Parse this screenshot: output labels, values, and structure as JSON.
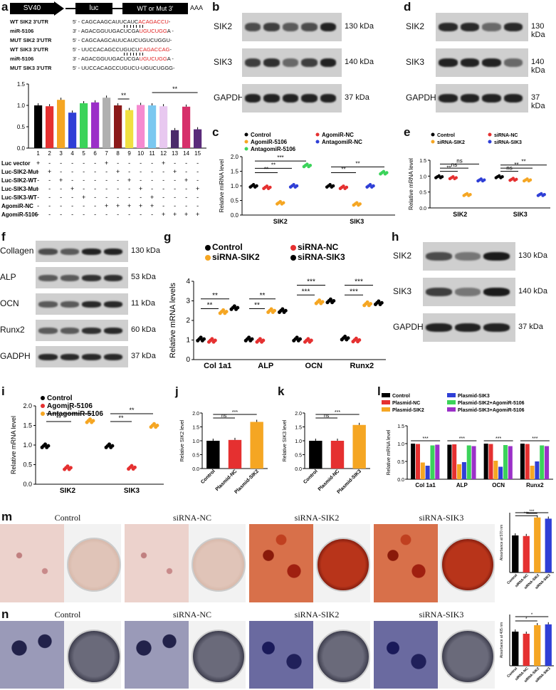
{
  "panels": {
    "a": {
      "letter": "a",
      "construct": {
        "left": "SV40",
        "middle": "luc",
        "right": "WT or Mut 3'",
        "tail": "AAA"
      },
      "sequences": [
        {
          "label": "WT SIK2 3'UTR",
          "prime": "5' -",
          "plain": "CAGCAAGCAUUCAUC",
          "red": "ACAGACCU",
          "end": "-"
        },
        {
          "label": "miR-5106",
          "prime": "3' -",
          "plain": "AGACGGUUGACUCGA",
          "red": "UGUCUGG",
          "end": "A -"
        },
        {
          "label": "MUT SIK2 3'UTR",
          "prime": "5' -",
          "plain": "CAGCAAGCAUUCAUCUGUCUGGU",
          "red": "",
          "end": "-"
        },
        {
          "label": "WT SIK3 3'UTR",
          "prime": "5' -",
          "plain": "UUCCACAGCCUGUCU",
          "red": "CAGACCAG",
          "end": "-"
        },
        {
          "label": "miR-5106",
          "prime": "3' -",
          "plain": "AGACGGUUGACUCGA",
          "red": "UGUCUGG",
          "end": "A -"
        },
        {
          "label": "MUT SIK3 3'UTR",
          "prime": "5' -",
          "plain": "UUCCACAGCCUGUCU-UGUCUGGG",
          "red": "",
          "end": "-"
        }
      ],
      "chart_data": {
        "type": "bar",
        "categories": [
          "1",
          "2",
          "3",
          "4",
          "5",
          "6",
          "7",
          "8",
          "9",
          "10",
          "11",
          "12",
          "13",
          "14",
          "15"
        ],
        "values": [
          1.0,
          0.98,
          1.13,
          0.83,
          1.05,
          1.07,
          1.18,
          1.0,
          0.89,
          1.01,
          1.0,
          0.98,
          0.42,
          0.97,
          0.44
        ],
        "colors": [
          "#000000",
          "#e53030",
          "#f5a623",
          "#2f3fd6",
          "#3bd35a",
          "#9b30c8",
          "#b0b0b0",
          "#8b1a1a",
          "#f0e040",
          "#f58ad0",
          "#7ac8f0",
          "#e8c8f0",
          "#4a2a6a",
          "#d6306a",
          "#5a2a7a"
        ],
        "ylim": [
          0,
          1.5
        ],
        "yticks": [
          "0.0",
          "0.5",
          "1.0",
          "1.5"
        ],
        "significance": [
          "**",
          "**"
        ]
      },
      "design_table": {
        "rows": [
          {
            "label": "Luc vector",
            "marks": [
              "+",
              "-",
              "-",
              "-",
              "-",
              "-",
              "+",
              "-",
              "-",
              "-",
              "-",
              "+",
              "-",
              "-",
              "-"
            ]
          },
          {
            "label": "Luc-SIK2-Mut",
            "marks": [
              "-",
              "+",
              "-",
              "-",
              "-",
              "-",
              "-",
              "+",
              "-",
              "-",
              "-",
              "-",
              "+",
              "-",
              "-"
            ]
          },
          {
            "label": "Luc-SIK2-WT",
            "marks": [
              "-",
              "-",
              "+",
              "-",
              "-",
              "-",
              "-",
              "-",
              "+",
              "-",
              "-",
              "-",
              "-",
              "+",
              "-"
            ]
          },
          {
            "label": "Luc-SIK3-Mut",
            "marks": [
              "-",
              "-",
              "-",
              "+",
              "-",
              "-",
              "-",
              "-",
              "-",
              "+",
              "-",
              "-",
              "-",
              "-",
              "+"
            ]
          },
          {
            "label": "Luc-SIK3-WT",
            "marks": [
              "-",
              "-",
              "-",
              "-",
              "+",
              "-",
              "-",
              "-",
              "-",
              "-",
              "+",
              "-",
              "-",
              "-",
              "-"
            ]
          },
          {
            "label": "AgomiR-NC",
            "marks": [
              "-",
              "-",
              "-",
              "-",
              "-",
              "-",
              "+",
              "+",
              "+",
              "+",
              "+",
              "-",
              "-",
              "-",
              "-"
            ]
          },
          {
            "label": "AgomiR-5106",
            "marks": [
              "-",
              "-",
              "-",
              "-",
              "-",
              "-",
              "-",
              "-",
              "-",
              "-",
              "-",
              "+",
              "+",
              "+",
              "+"
            ]
          }
        ]
      }
    },
    "b": {
      "letter": "b",
      "rows": [
        {
          "name": "SIK2",
          "kda": "130 kDa"
        },
        {
          "name": "SIK3",
          "kda": "140 kDa"
        },
        {
          "name": "GAPDH",
          "kda": "37 kDa"
        }
      ]
    },
    "c": {
      "letter": "c",
      "legend": [
        "Control",
        "AgomiR-NC",
        "AgomiR-5106",
        "AntagomiR-NC",
        "AntagomiR-5106"
      ],
      "chart_data": {
        "type": "scatter",
        "categories": [
          "SIK2",
          "SIK3"
        ],
        "ylabel": "Relative miRNA level",
        "ylim": [
          0,
          2.0
        ],
        "yticks": [
          "0.0",
          "0.5",
          "1.0",
          "1.5",
          "2.0"
        ],
        "series": [
          {
            "name": "Control",
            "color": "#000000",
            "values": [
              1.0,
              1.0
            ]
          },
          {
            "name": "AgomiR-NC",
            "color": "#e53030",
            "values": [
              0.95,
              0.95
            ]
          },
          {
            "name": "AgomiR-5106",
            "color": "#f5a623",
            "values": [
              0.42,
              0.38
            ]
          },
          {
            "name": "AntagomiR-NC",
            "color": "#2f3fd6",
            "values": [
              1.0,
              1.0
            ]
          },
          {
            "name": "AntagomiR-5106",
            "color": "#3bd35a",
            "values": [
              1.7,
              1.45
            ]
          }
        ],
        "significance": [
          "**",
          "**",
          "***",
          "**",
          "**"
        ]
      }
    },
    "d": {
      "letter": "d",
      "rows": [
        {
          "name": "SIK2",
          "kda": "130 kDa"
        },
        {
          "name": "SIK3",
          "kda": "140 kDa"
        },
        {
          "name": "GAPDH",
          "kda": "37 kDa"
        }
      ]
    },
    "e": {
      "letter": "e",
      "legend": [
        "Control",
        "siRNA-NC",
        "siRNA-SIK2",
        "siRNA-SIK3"
      ],
      "chart_data": {
        "type": "scatter",
        "categories": [
          "SIK2",
          "SIK3"
        ],
        "ylabel": "Relative mRNA level",
        "ylim": [
          0,
          1.5
        ],
        "yticks": [
          "0.0",
          "0.5",
          "1.0",
          "1.5"
        ],
        "series": [
          {
            "name": "Control",
            "color": "#000000",
            "values": [
              0.98,
              0.98
            ]
          },
          {
            "name": "siRNA-NC",
            "color": "#e53030",
            "values": [
              0.95,
              0.9
            ]
          },
          {
            "name": "siRNA-SIK2",
            "color": "#f5a623",
            "values": [
              0.42,
              0.88
            ]
          },
          {
            "name": "siRNA-SIK3",
            "color": "#2f3fd6",
            "values": [
              0.88,
              0.42
            ]
          }
        ],
        "significance": [
          "**",
          "ns",
          "ns",
          "**",
          "ns",
          "**"
        ]
      }
    },
    "f": {
      "letter": "f",
      "rows": [
        {
          "name": "Collagen I",
          "kda": "130 kDa"
        },
        {
          "name": "ALP",
          "kda": "53 kDa"
        },
        {
          "name": "OCN",
          "kda": "11 kDa"
        },
        {
          "name": "Runx2",
          "kda": "60 kDa"
        },
        {
          "name": "GADPH",
          "kda": "37 kDa"
        }
      ]
    },
    "g": {
      "letter": "g",
      "legend": [
        "Control",
        "siRNA-NC",
        "siRNA-SIK2",
        "siRNA-SIK3"
      ],
      "chart_data": {
        "type": "scatter",
        "categories": [
          "Col 1a1",
          "ALP",
          "OCN",
          "Runx2"
        ],
        "ylabel": "Relative mRNA levels",
        "ylim": [
          0,
          4
        ],
        "yticks": [
          "0",
          "1",
          "2",
          "3",
          "4"
        ],
        "series": [
          {
            "name": "Control",
            "color": "#000000",
            "values": [
              1.05,
              1.05,
              1.05,
              1.1
            ]
          },
          {
            "name": "siRNA-NC",
            "color": "#e53030",
            "values": [
              0.98,
              0.98,
              0.98,
              1.0
            ]
          },
          {
            "name": "siRNA-SIK2",
            "color": "#f5a623",
            "values": [
              2.45,
              2.5,
              2.95,
              2.85
            ]
          },
          {
            "name": "siRNA-SIK3",
            "color": "#000000",
            "values": [
              2.65,
              2.5,
              3.0,
              2.9
            ]
          }
        ],
        "significance": [
          "**",
          "**",
          "**",
          "**",
          "***",
          "***",
          "***",
          "***"
        ]
      }
    },
    "h": {
      "letter": "h",
      "rows": [
        {
          "name": "SIK2",
          "kda": "130 kDa"
        },
        {
          "name": "SIK3",
          "kda": "140 kDa"
        },
        {
          "name": "GAPDH",
          "kda": "37 kDa"
        }
      ]
    },
    "i": {
      "letter": "i",
      "legend": [
        "Control",
        "AgomiR-5106",
        "AntagomiR-5106"
      ],
      "chart_data": {
        "type": "scatter",
        "categories": [
          "SIK2",
          "SIK3"
        ],
        "ylabel": "Relative mRNA level",
        "ylim": [
          0,
          2.0
        ],
        "yticks": [
          "0.0",
          "0.5",
          "1.0",
          "1.5",
          "2.0"
        ],
        "series": [
          {
            "name": "Control",
            "color": "#000000",
            "values": [
              0.98,
              0.98
            ]
          },
          {
            "name": "AgomiR-5106",
            "color": "#e53030",
            "values": [
              0.42,
              0.43
            ]
          },
          {
            "name": "AntagomiR-5106",
            "color": "#f5a623",
            "values": [
              1.62,
              1.5
            ]
          }
        ],
        "significance": [
          "**",
          "**",
          "**",
          "**"
        ]
      }
    },
    "j": {
      "letter": "j",
      "chart_data": {
        "type": "bar",
        "categories": [
          "Control",
          "Plasmid-NC",
          "Plasmid-SIK2"
        ],
        "values": [
          1.0,
          1.03,
          1.68
        ],
        "colors": [
          "#000000",
          "#e53030",
          "#f5a623"
        ],
        "ylabel": "Relative SIK2 level",
        "ylim": [
          0,
          2.0
        ],
        "yticks": [
          "0.0",
          "0.5",
          "1.0",
          "1.5",
          "2.0"
        ],
        "significance": [
          "ns",
          "***"
        ]
      }
    },
    "k": {
      "letter": "k",
      "chart_data": {
        "type": "bar",
        "categories": [
          "Control",
          "Plasmid-NC",
          "Plasmid-SIK3"
        ],
        "values": [
          1.0,
          1.0,
          1.57
        ],
        "colors": [
          "#000000",
          "#e53030",
          "#f5a623"
        ],
        "ylabel": "Relative SIK3 level",
        "ylim": [
          0,
          2.0
        ],
        "yticks": [
          "0.0",
          "0.5",
          "1.0",
          "1.5",
          "2.0"
        ],
        "significance": [
          "ns",
          "***"
        ]
      }
    },
    "l": {
      "letter": "l",
      "legend": [
        "Control",
        "Plasmid-NC",
        "Plasmid-SIK2",
        "Plasmid-SIK3",
        "Plasmid-SIK2+AgomiR-5106",
        "Plasmid-SIK3+AgomiR-5106"
      ],
      "chart_data": {
        "type": "bar",
        "categories": [
          "Col 1a1",
          "ALP",
          "OCN",
          "Runx2"
        ],
        "ylabel": "Relative mRNA level",
        "ylim": [
          0,
          1.5
        ],
        "yticks": [
          "0.0",
          "0.5",
          "1.0",
          "1.5"
        ],
        "series": [
          {
            "name": "Control",
            "color": "#000000",
            "values": [
              1.0,
              0.97,
              1.0,
              1.0
            ]
          },
          {
            "name": "Plasmid-NC",
            "color": "#e53030",
            "values": [
              0.99,
              0.98,
              0.99,
              0.99
            ]
          },
          {
            "name": "Plasmid-SIK2",
            "color": "#f5a623",
            "values": [
              0.47,
              0.42,
              0.52,
              0.38
            ]
          },
          {
            "name": "Plasmid-SIK3",
            "color": "#2f3fd6",
            "values": [
              0.38,
              0.48,
              0.35,
              0.5
            ]
          },
          {
            "name": "Plasmid-SIK2+AgomiR-5106",
            "color": "#3bd35a",
            "values": [
              0.95,
              0.95,
              0.96,
              0.95
            ]
          },
          {
            "name": "Plasmid-SIK3+AgomiR-5106",
            "color": "#9b30c8",
            "values": [
              0.97,
              0.93,
              0.93,
              0.93
            ]
          }
        ],
        "significance": [
          "***",
          "***",
          "***",
          "***"
        ]
      }
    },
    "m": {
      "letter": "m",
      "captions": [
        "Control",
        "siRNA-NC",
        "siRNA-SIK2",
        "siRNA-SIK3"
      ],
      "chart_data": {
        "type": "bar",
        "categories": [
          "Control",
          "siRNA-NC",
          "siRNA-SIK2",
          "siRNA-SIK3"
        ],
        "values": [
          3.1,
          3.05,
          4.6,
          4.5
        ],
        "colors": [
          "#000000",
          "#e53030",
          "#f5a623",
          "#2f3fd6"
        ],
        "ylabel": "Absorbance at 570 nm",
        "ylim": [
          0,
          5
        ],
        "significance": [
          "***",
          "***"
        ]
      }
    },
    "n": {
      "letter": "n",
      "captions": [
        "Control",
        "siRNA-NC",
        "siRNA-SIK2",
        "siRNA-SIK3"
      ],
      "chart_data": {
        "type": "bar",
        "categories": [
          "Control",
          "siRNA-NC",
          "siRNA-SIK2",
          "siRNA-SIK3"
        ],
        "values": [
          0.8,
          0.75,
          0.95,
          0.97
        ],
        "colors": [
          "#000000",
          "#e53030",
          "#f5a623",
          "#2f3fd6"
        ],
        "ylabel": "Absorbance at 405 nm",
        "ylim": [
          0,
          1.2
        ],
        "significance": [
          "*",
          "*"
        ]
      }
    }
  }
}
